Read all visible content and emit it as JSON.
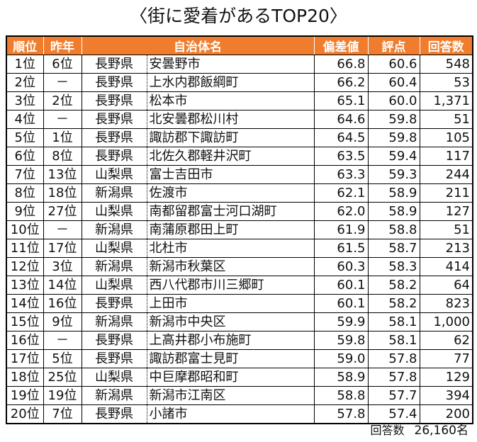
{
  "title": "〈街に愛着があるTOP20〉",
  "colors": {
    "header_bg": "#f07d2d",
    "header_text": "#ffffff"
  },
  "table": {
    "headers": [
      "順位",
      "昨年",
      "",
      "自治体名",
      "偏差値",
      "評点",
      "回答数"
    ],
    "rows": [
      [
        "1位",
        "6位",
        "長野県",
        "安曇野市",
        "66.8",
        "60.6",
        "548"
      ],
      [
        "2位",
        "－",
        "長野県",
        "上水内郡飯綱町",
        "66.2",
        "60.4",
        "53"
      ],
      [
        "3位",
        "2位",
        "長野県",
        "松本市",
        "65.1",
        "60.0",
        "1,371"
      ],
      [
        "4位",
        "－",
        "長野県",
        "北安曇郡松川村",
        "64.6",
        "59.8",
        "51"
      ],
      [
        "5位",
        "1位",
        "長野県",
        "諏訪郡下諏訪町",
        "64.5",
        "59.8",
        "105"
      ],
      [
        "6位",
        "8位",
        "長野県",
        "北佐久郡軽井沢町",
        "63.5",
        "59.4",
        "117"
      ],
      [
        "7位",
        "13位",
        "山梨県",
        "富士吉田市",
        "63.3",
        "59.3",
        "244"
      ],
      [
        "8位",
        "18位",
        "新潟県",
        "佐渡市",
        "62.1",
        "58.9",
        "211"
      ],
      [
        "9位",
        "27位",
        "山梨県",
        "南都留郡富士河口湖町",
        "62.0",
        "58.9",
        "127"
      ],
      [
        "10位",
        "－",
        "新潟県",
        "南蒲原郡田上町",
        "61.9",
        "58.8",
        "51"
      ],
      [
        "11位",
        "17位",
        "山梨県",
        "北杜市",
        "61.5",
        "58.7",
        "213"
      ],
      [
        "12位",
        "3位",
        "新潟県",
        "新潟市秋葉区",
        "60.3",
        "58.3",
        "414"
      ],
      [
        "13位",
        "14位",
        "山梨県",
        "西八代郡市川三郷町",
        "60.1",
        "58.2",
        "64"
      ],
      [
        "14位",
        "16位",
        "長野県",
        "上田市",
        "60.1",
        "58.2",
        "823"
      ],
      [
        "15位",
        "9位",
        "新潟県",
        "新潟市中央区",
        "59.9",
        "58.1",
        "1,000"
      ],
      [
        "16位",
        "－",
        "長野県",
        "上高井郡小布施町",
        "59.8",
        "58.1",
        "62"
      ],
      [
        "17位",
        "5位",
        "長野県",
        "諏訪郡富士見町",
        "59.0",
        "57.8",
        "77"
      ],
      [
        "18位",
        "25位",
        "山梨県",
        "中巨摩郡昭和町",
        "58.9",
        "57.8",
        "129"
      ],
      [
        "19位",
        "19位",
        "新潟県",
        "新潟市江南区",
        "58.8",
        "57.7",
        "394"
      ],
      [
        "20位",
        "7位",
        "長野県",
        "小諸市",
        "57.8",
        "57.4",
        "200"
      ]
    ]
  },
  "footer": {
    "label": "回答数",
    "value": "26,160名"
  }
}
